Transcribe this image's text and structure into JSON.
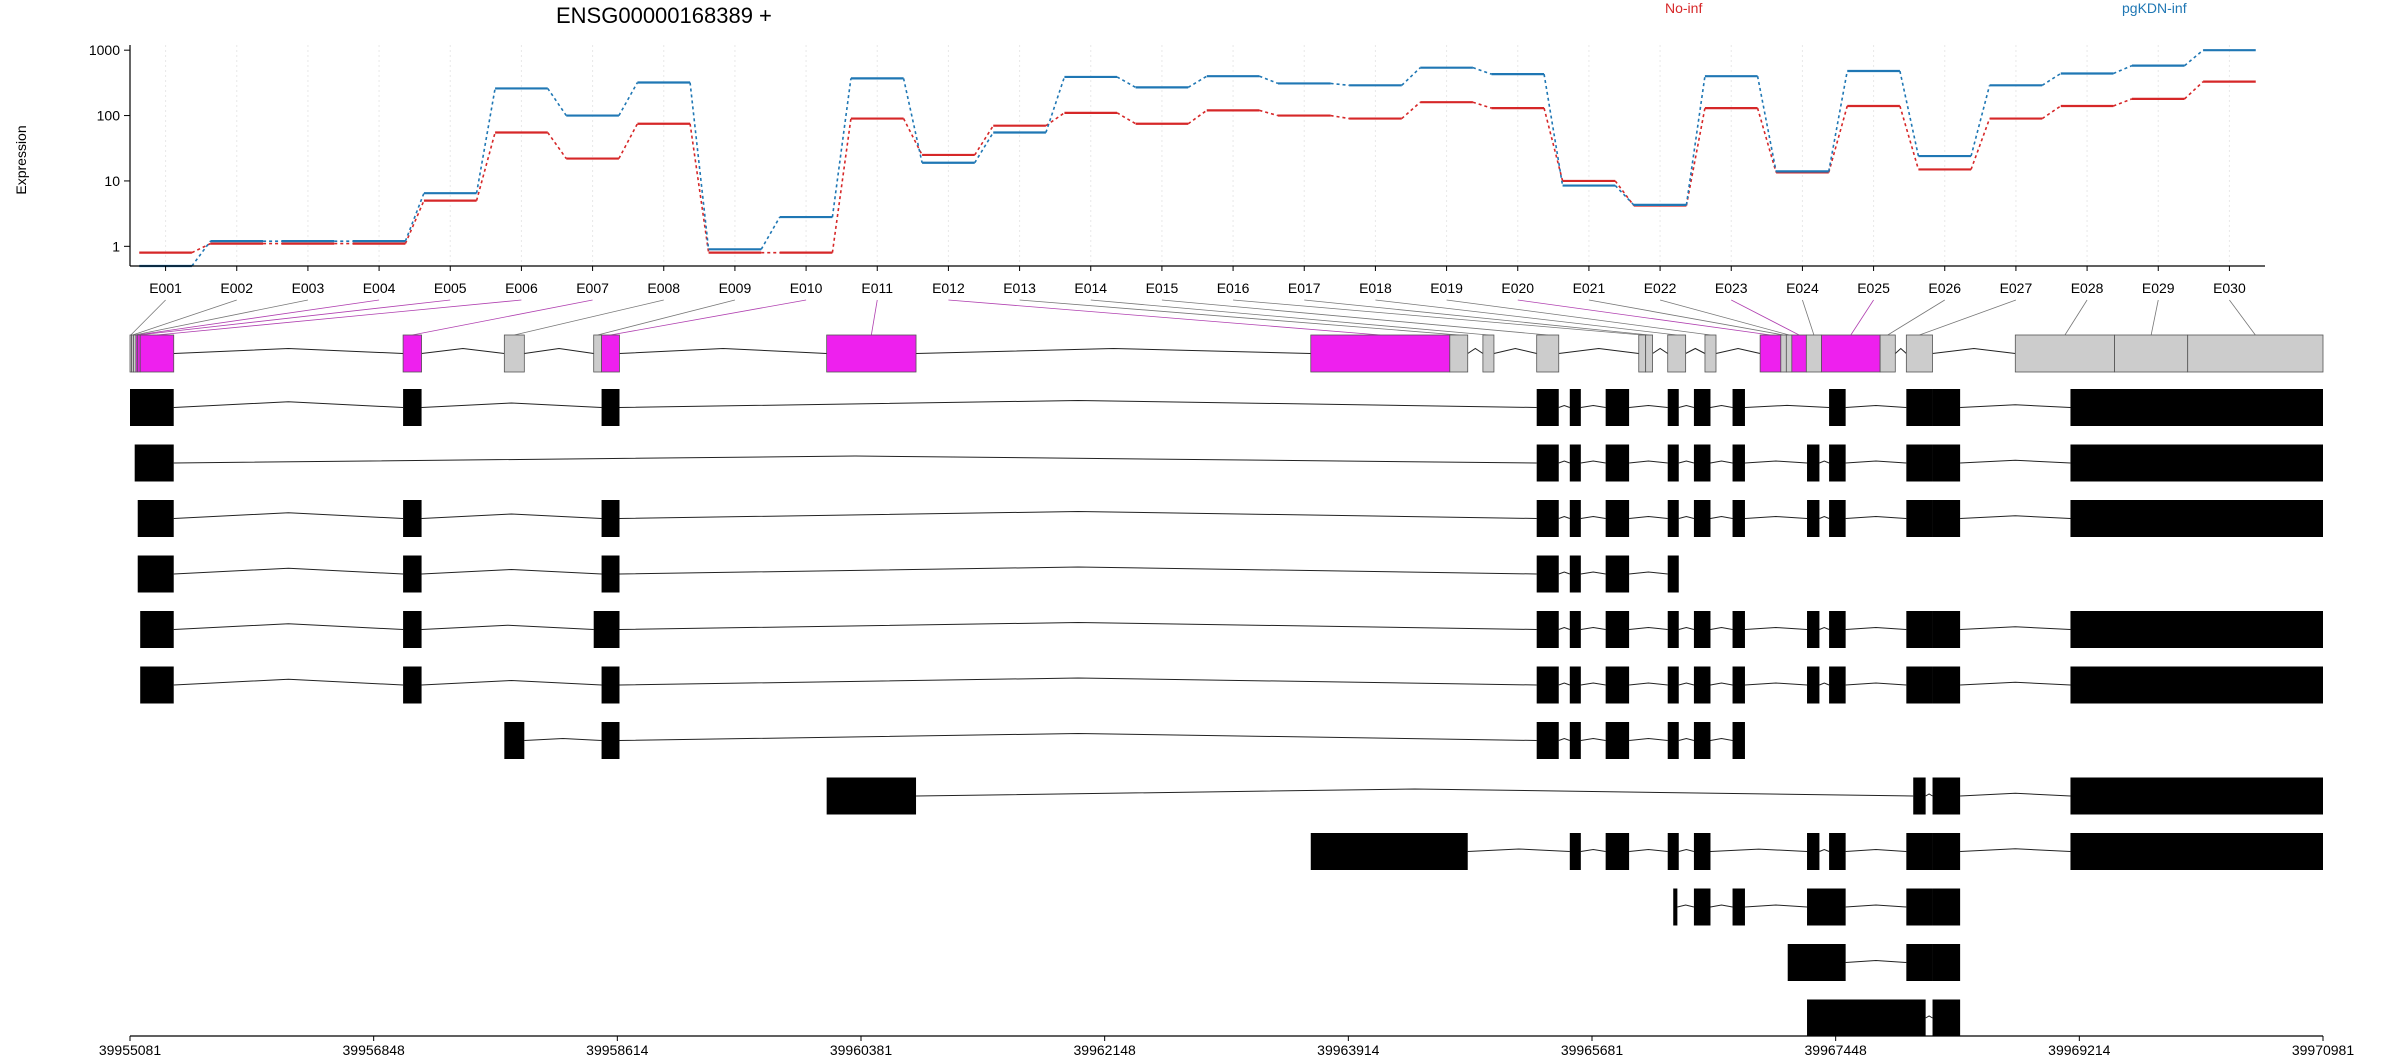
{
  "chart_data": {
    "type": "line",
    "title": "ENSG00000168389 +",
    "ylabel": "Expression",
    "yscale": "log",
    "ylim": [
      0.5,
      1200
    ],
    "yticks": [
      1,
      10,
      100,
      1000
    ],
    "ytick_labels": [
      "1",
      "10",
      "100",
      "1000"
    ],
    "grid": "vertical dotted lines at exon centers",
    "legend_placement": "top, labels only",
    "categories": [
      "E001",
      "E002",
      "E003",
      "E004",
      "E005",
      "E006",
      "E007",
      "E008",
      "E009",
      "E010",
      "E011",
      "E012",
      "E013",
      "E014",
      "E015",
      "E016",
      "E017",
      "E018",
      "E019",
      "E020",
      "E021",
      "E022",
      "E023",
      "E024",
      "E025",
      "E026",
      "E027",
      "E028",
      "E029",
      "E030"
    ],
    "series": [
      {
        "name": "No-inf",
        "color": "#d62728",
        "values": [
          0.8,
          1.1,
          1.1,
          1.1,
          5,
          55,
          22,
          75,
          0.8,
          0.8,
          90,
          25,
          70,
          110,
          75,
          120,
          100,
          90,
          160,
          130,
          10,
          4.2,
          130,
          13.5,
          140,
          15,
          90,
          140,
          180,
          330
        ]
      },
      {
        "name": "pgKDN-inf",
        "color": "#1f77b4",
        "values": [
          0.5,
          1.2,
          1.2,
          1.2,
          6.5,
          260,
          100,
          320,
          0.9,
          2.8,
          370,
          19,
          55,
          390,
          270,
          400,
          310,
          290,
          540,
          430,
          8.5,
          4.3,
          400,
          14,
          480,
          24,
          290,
          440,
          580,
          1000
        ]
      }
    ]
  },
  "coordinates": {
    "start": 39955081,
    "end": 39970981,
    "tick_labels": [
      "39955081",
      "39956848",
      "39958614",
      "39960381",
      "39962148",
      "39963914",
      "39965681",
      "39967448",
      "39969214",
      "39970981"
    ]
  },
  "gene_model": {
    "highlight_color": "#ee20ee",
    "normal_color": "#cccccc",
    "exons": [
      {
        "id": "E001",
        "start": 39955081,
        "end": 39955093,
        "hl": false
      },
      {
        "id": "E002",
        "start": 39955093,
        "end": 39955106,
        "hl": false
      },
      {
        "id": "E003",
        "start": 39955106,
        "end": 39955124,
        "hl": false
      },
      {
        "id": "E004",
        "start": 39955124,
        "end": 39955137,
        "hl": true
      },
      {
        "id": "E005",
        "start": 39955137,
        "end": 39955155,
        "hl": true
      },
      {
        "id": "E006",
        "start": 39955155,
        "end": 39955398,
        "hl": true
      },
      {
        "id": "E007",
        "start": 39957061,
        "end": 39957195,
        "hl": true
      },
      {
        "id": "E008",
        "start": 39957795,
        "end": 39957940,
        "hl": false
      },
      {
        "id": "E009",
        "start": 39958443,
        "end": 39958500,
        "hl": false
      },
      {
        "id": "E010",
        "start": 39958500,
        "end": 39958630,
        "hl": true
      },
      {
        "id": "E011",
        "start": 39960132,
        "end": 39960780,
        "hl": true
      },
      {
        "id": "E012",
        "start": 39963642,
        "end": 39964650,
        "hl": true
      },
      {
        "id": "E013",
        "start": 39964650,
        "end": 39964780,
        "hl": false
      },
      {
        "id": "E014",
        "start": 39964890,
        "end": 39964970,
        "hl": false
      },
      {
        "id": "E015",
        "start": 39965280,
        "end": 39965440,
        "hl": false
      },
      {
        "id": "E016",
        "start": 39966020,
        "end": 39966070,
        "hl": false
      },
      {
        "id": "E017",
        "start": 39966070,
        "end": 39966120,
        "hl": false
      },
      {
        "id": "E018",
        "start": 39966230,
        "end": 39966360,
        "hl": false
      },
      {
        "id": "E019",
        "start": 39966500,
        "end": 39966580,
        "hl": false
      },
      {
        "id": "E020",
        "start": 39966900,
        "end": 39967050,
        "hl": true
      },
      {
        "id": "E021",
        "start": 39967050,
        "end": 39967090,
        "hl": false
      },
      {
        "id": "E022",
        "start": 39967090,
        "end": 39967130,
        "hl": false
      },
      {
        "id": "E023",
        "start": 39967130,
        "end": 39967235,
        "hl": true
      },
      {
        "id": "E024",
        "start": 39967235,
        "end": 39967345,
        "hl": false
      },
      {
        "id": "E025",
        "start": 39967345,
        "end": 39967770,
        "hl": true
      },
      {
        "id": "E026",
        "start": 39967770,
        "end": 39967880,
        "hl": false
      },
      {
        "id": "E027",
        "start": 39967960,
        "end": 39968150,
        "hl": false
      },
      {
        "id": "E028",
        "start": 39968750,
        "end": 39969470,
        "hl": false
      },
      {
        "id": "E029",
        "start": 39969470,
        "end": 39970000,
        "hl": false
      },
      {
        "id": "E030",
        "start": 39970000,
        "end": 39970981,
        "hl": false
      }
    ]
  },
  "transcripts": [
    {
      "exons": [
        [
          39955081,
          39955398
        ],
        [
          39957061,
          39957195
        ],
        [
          39958500,
          39958630
        ],
        [
          39965280,
          39965440
        ],
        [
          39965520,
          39965600
        ],
        [
          39965780,
          39965950
        ],
        [
          39966230,
          39966310
        ],
        [
          39966420,
          39966540
        ],
        [
          39966700,
          39966790
        ],
        [
          39967400,
          39967520
        ],
        [
          39967960,
          39968150
        ],
        [
          39968150,
          39968350
        ],
        [
          39969150,
          39970981
        ]
      ]
    },
    {
      "exons": [
        [
          39955115,
          39955398
        ],
        [
          39965280,
          39965440
        ],
        [
          39965520,
          39965600
        ],
        [
          39965780,
          39965950
        ],
        [
          39966230,
          39966310
        ],
        [
          39966420,
          39966540
        ],
        [
          39966700,
          39966790
        ],
        [
          39967240,
          39967330
        ],
        [
          39967400,
          39967520
        ],
        [
          39967960,
          39968150
        ],
        [
          39968150,
          39968350
        ],
        [
          39969150,
          39970981
        ]
      ]
    },
    {
      "exons": [
        [
          39955137,
          39955398
        ],
        [
          39957061,
          39957195
        ],
        [
          39958500,
          39958630
        ],
        [
          39965280,
          39965440
        ],
        [
          39965520,
          39965600
        ],
        [
          39965780,
          39965950
        ],
        [
          39966230,
          39966310
        ],
        [
          39966420,
          39966540
        ],
        [
          39966700,
          39966790
        ],
        [
          39967240,
          39967330
        ],
        [
          39967400,
          39967520
        ],
        [
          39967960,
          39968150
        ],
        [
          39968150,
          39968350
        ],
        [
          39969150,
          39970981
        ]
      ]
    },
    {
      "exons": [
        [
          39955137,
          39955398
        ],
        [
          39957061,
          39957195
        ],
        [
          39958500,
          39958630
        ],
        [
          39965280,
          39965440
        ],
        [
          39965520,
          39965600
        ],
        [
          39965780,
          39965950
        ],
        [
          39966230,
          39966310
        ]
      ]
    },
    {
      "exons": [
        [
          39955155,
          39955398
        ],
        [
          39957061,
          39957195
        ],
        [
          39958443,
          39958630
        ],
        [
          39965280,
          39965440
        ],
        [
          39965520,
          39965600
        ],
        [
          39965780,
          39965950
        ],
        [
          39966230,
          39966310
        ],
        [
          39966420,
          39966540
        ],
        [
          39966700,
          39966790
        ],
        [
          39967240,
          39967330
        ],
        [
          39967400,
          39967520
        ],
        [
          39967960,
          39968150
        ],
        [
          39968150,
          39968350
        ],
        [
          39969150,
          39970981
        ]
      ]
    },
    {
      "exons": [
        [
          39955155,
          39955398
        ],
        [
          39957061,
          39957195
        ],
        [
          39958500,
          39958630
        ],
        [
          39965280,
          39965440
        ],
        [
          39965520,
          39965600
        ],
        [
          39965780,
          39965950
        ],
        [
          39966230,
          39966310
        ],
        [
          39966420,
          39966540
        ],
        [
          39966700,
          39966790
        ],
        [
          39967240,
          39967330
        ],
        [
          39967400,
          39967520
        ],
        [
          39967960,
          39968150
        ],
        [
          39968150,
          39968350
        ],
        [
          39969150,
          39970981
        ]
      ]
    },
    {
      "exons": [
        [
          39957795,
          39957940
        ],
        [
          39958500,
          39958630
        ],
        [
          39965280,
          39965440
        ],
        [
          39965520,
          39965600
        ],
        [
          39965780,
          39965950
        ],
        [
          39966230,
          39966310
        ],
        [
          39966420,
          39966540
        ],
        [
          39966700,
          39966790
        ]
      ]
    },
    {
      "exons": [
        [
          39960132,
          39960780
        ],
        [
          39968010,
          39968100
        ],
        [
          39968150,
          39968350
        ],
        [
          39969150,
          39970981
        ]
      ]
    },
    {
      "exons": [
        [
          39963642,
          39964780
        ],
        [
          39965520,
          39965600
        ],
        [
          39965780,
          39965950
        ],
        [
          39966230,
          39966310
        ],
        [
          39966420,
          39966540
        ],
        [
          39967240,
          39967330
        ],
        [
          39967400,
          39967520
        ],
        [
          39967960,
          39968150
        ],
        [
          39968150,
          39968350
        ],
        [
          39969150,
          39970981
        ]
      ]
    },
    {
      "exons": [
        [
          39966270,
          39966300
        ],
        [
          39966420,
          39966540
        ],
        [
          39966700,
          39966790
        ],
        [
          39967240,
          39967520
        ],
        [
          39967960,
          39968150
        ],
        [
          39968150,
          39968350
        ]
      ]
    },
    {
      "exons": [
        [
          39967100,
          39967520
        ],
        [
          39967960,
          39968150
        ],
        [
          39968150,
          39968350
        ]
      ]
    },
    {
      "exons": [
        [
          39967240,
          39968100
        ],
        [
          39968150,
          39968350
        ]
      ]
    }
  ]
}
